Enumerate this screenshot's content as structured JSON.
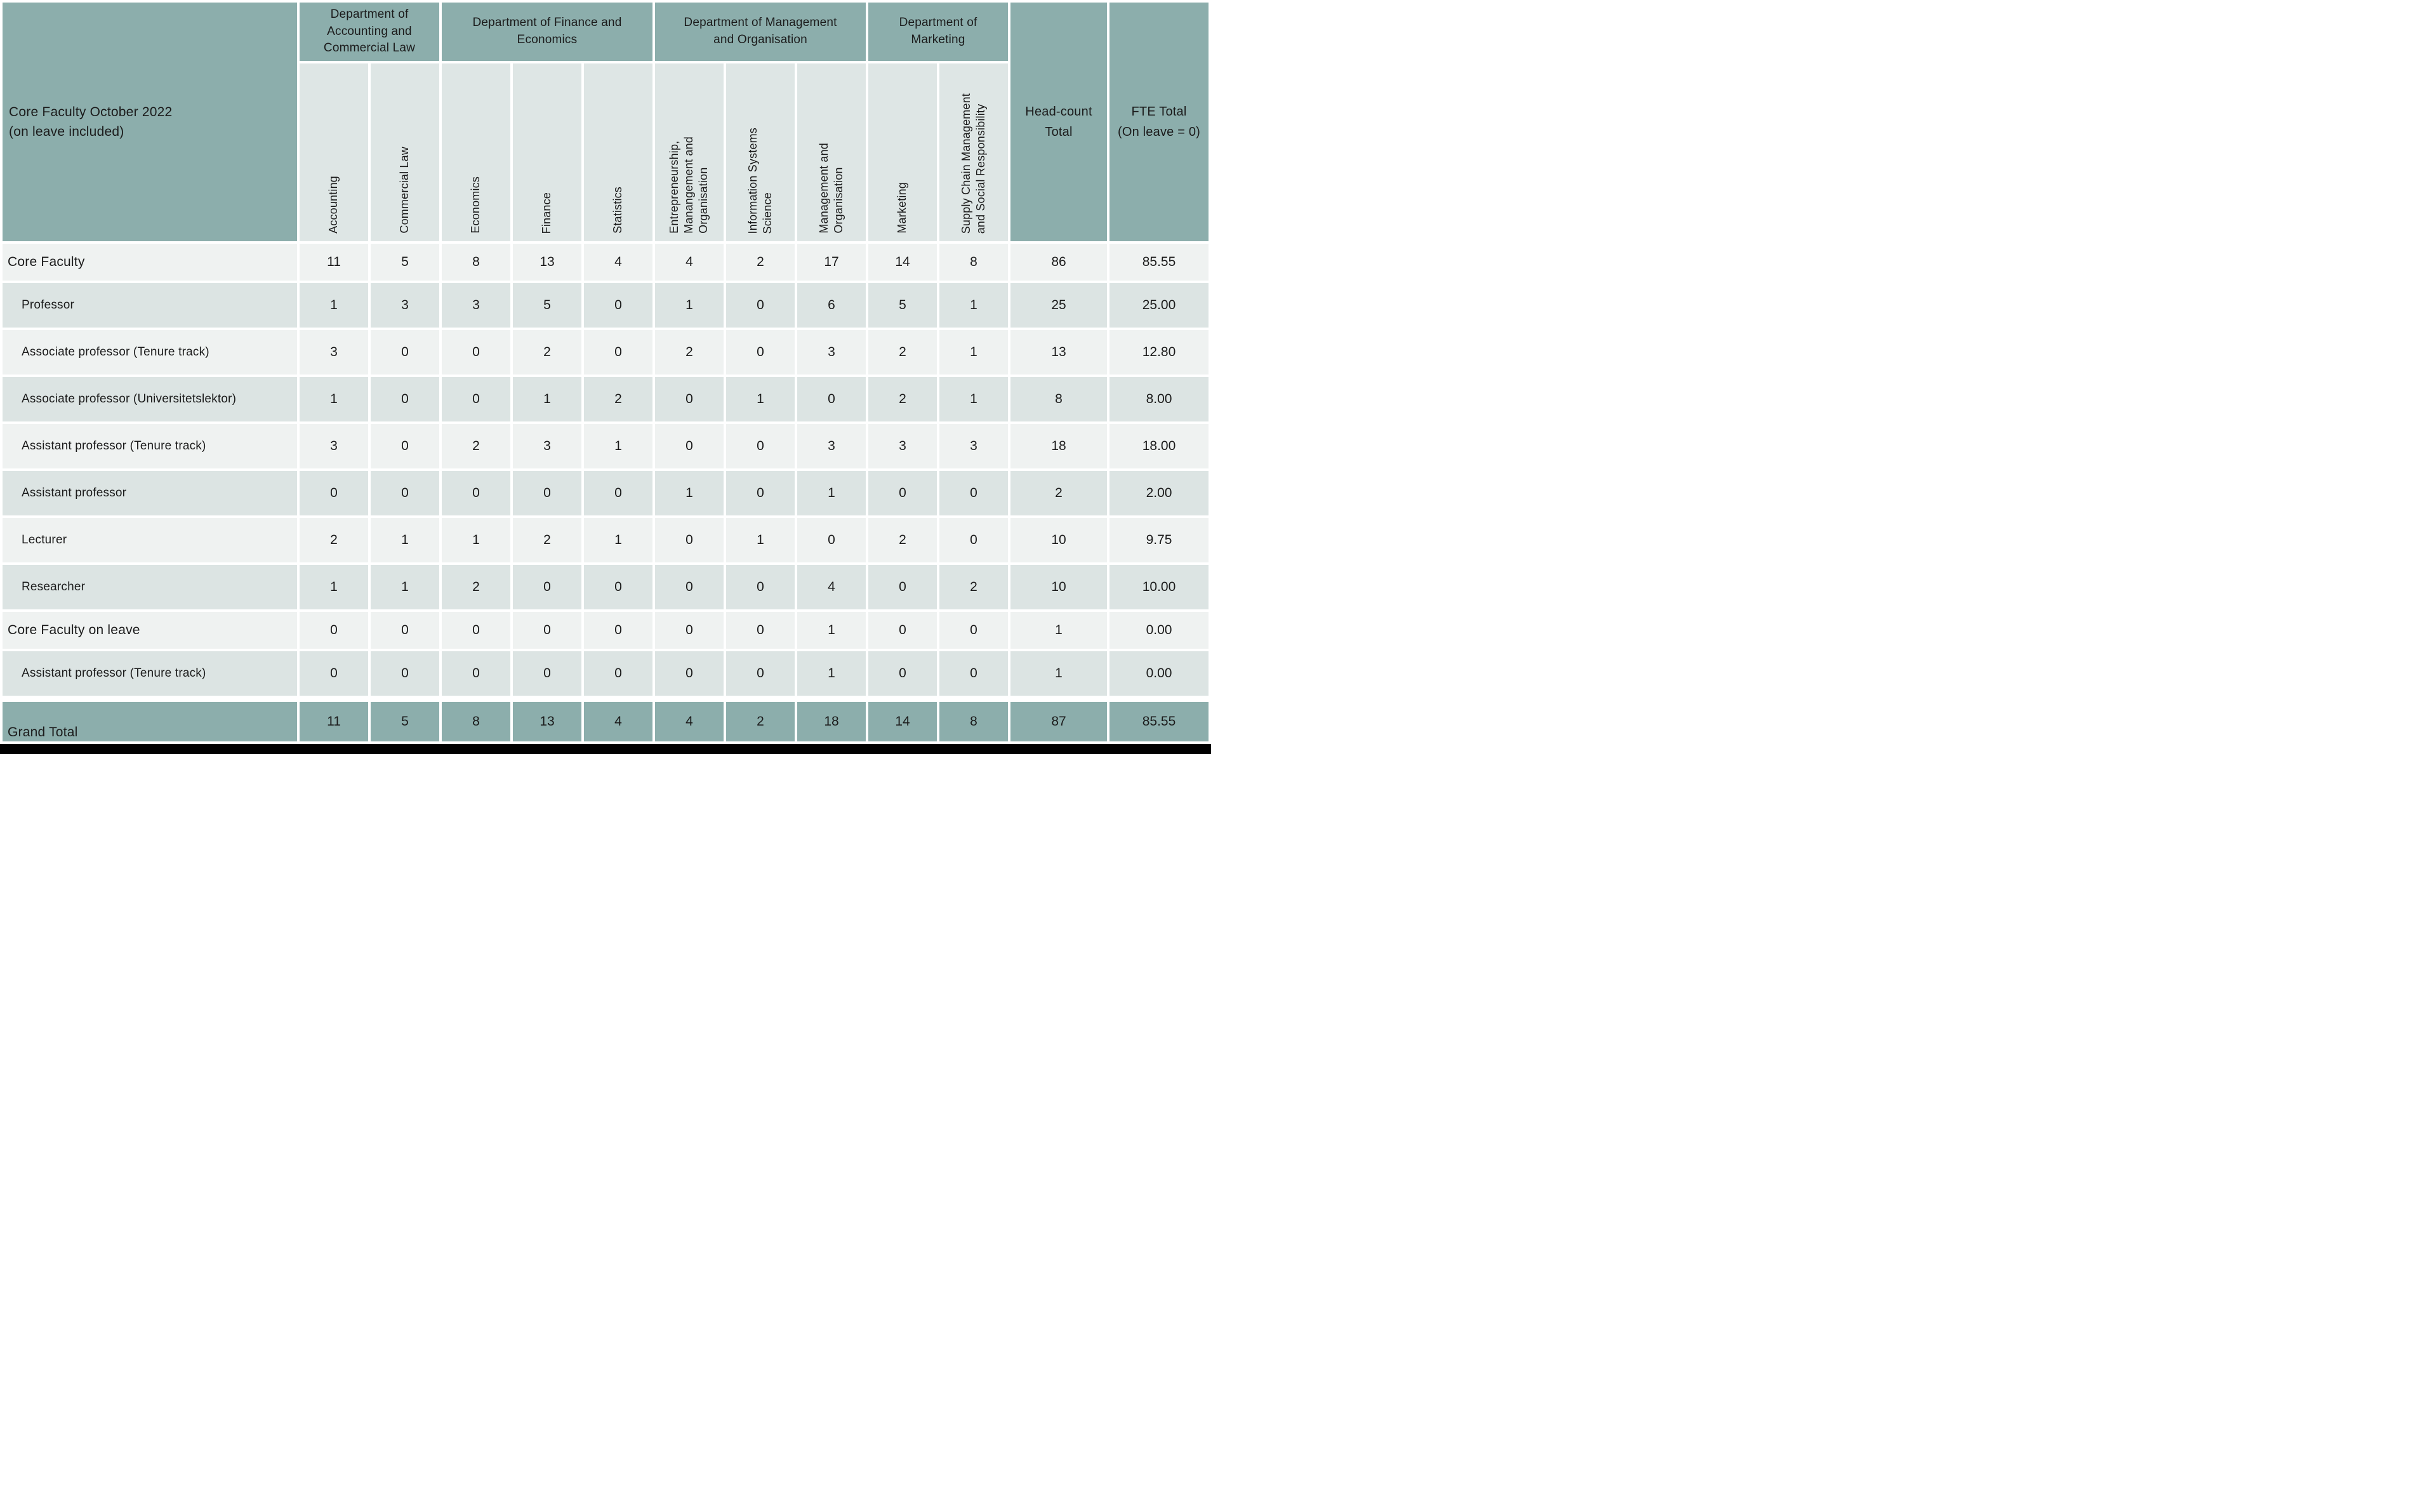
{
  "title": "Core Faculty October 2022\n(on leave included)",
  "departments": [
    {
      "name": "Department of\nAccounting and\nCommercial Law",
      "subjects": [
        "Accounting",
        "Commercial Law"
      ]
    },
    {
      "name": "Department of Finance and\nEconomics",
      "subjects": [
        "Economics",
        "Finance",
        "Statistics"
      ]
    },
    {
      "name": "Department of Management\nand Organisation",
      "subjects": [
        "Entrepreneurship,\nManangement and\nOrganisation",
        "Information Systems\nScience",
        "Management and\nOrganisation"
      ]
    },
    {
      "name": "Department of\nMarketing",
      "subjects": [
        "Marketing",
        "Supply Chain Management\nand Social Responsibility"
      ]
    }
  ],
  "totals_headers": {
    "head_count": "Head-count\nTotal",
    "fte": "FTE Total\n(On leave = 0)"
  },
  "rows": [
    {
      "label": "Core Faculty",
      "level": "group",
      "values": [
        11,
        5,
        8,
        13,
        4,
        4,
        2,
        17,
        14,
        8
      ],
      "head_count": "86",
      "fte": "85.55"
    },
    {
      "label": "Professor",
      "level": "sub",
      "values": [
        1,
        3,
        3,
        5,
        0,
        1,
        0,
        6,
        5,
        1
      ],
      "head_count": "25",
      "fte": "25.00"
    },
    {
      "label": "Associate professor (Tenure track)",
      "level": "sub",
      "values": [
        3,
        0,
        0,
        2,
        0,
        2,
        0,
        3,
        2,
        1
      ],
      "head_count": "13",
      "fte": "12.80"
    },
    {
      "label": "Associate professor (Universitetslektor)",
      "level": "sub",
      "values": [
        1,
        0,
        0,
        1,
        2,
        0,
        1,
        0,
        2,
        1
      ],
      "head_count": "8",
      "fte": "8.00"
    },
    {
      "label": "Assistant professor (Tenure track)",
      "level": "sub",
      "values": [
        3,
        0,
        2,
        3,
        1,
        0,
        0,
        3,
        3,
        3
      ],
      "head_count": "18",
      "fte": "18.00"
    },
    {
      "label": "Assistant professor",
      "level": "sub",
      "values": [
        0,
        0,
        0,
        0,
        0,
        1,
        0,
        1,
        0,
        0
      ],
      "head_count": "2",
      "fte": "2.00"
    },
    {
      "label": "Lecturer",
      "level": "sub",
      "values": [
        2,
        1,
        1,
        2,
        1,
        0,
        1,
        0,
        2,
        0
      ],
      "head_count": "10",
      "fte": "9.75"
    },
    {
      "label": "Researcher",
      "level": "sub",
      "values": [
        1,
        1,
        2,
        0,
        0,
        0,
        0,
        4,
        0,
        2
      ],
      "head_count": "10",
      "fte": "10.00"
    },
    {
      "label": "Core Faculty on leave",
      "level": "group",
      "values": [
        0,
        0,
        0,
        0,
        0,
        0,
        0,
        1,
        0,
        0
      ],
      "head_count": "1",
      "fte": "0.00"
    },
    {
      "label": "Assistant professor (Tenure track)",
      "level": "sub",
      "values": [
        0,
        0,
        0,
        0,
        0,
        0,
        0,
        1,
        0,
        0
      ],
      "head_count": "1",
      "fte": "0.00"
    },
    {
      "label": "Grand Total",
      "level": "total",
      "values": [
        11,
        5,
        8,
        13,
        4,
        4,
        2,
        18,
        14,
        8
      ],
      "head_count": "87",
      "fte": "85.55"
    }
  ],
  "colors": {
    "teal_header": "#8caeac",
    "row_light": "#eff2f1",
    "row_dark": "#dce4e3",
    "subject_header_bg": "#dee6e5",
    "gridline": "#ffffff",
    "text": "#1b1b1b",
    "bottom_bar": "#000000"
  }
}
